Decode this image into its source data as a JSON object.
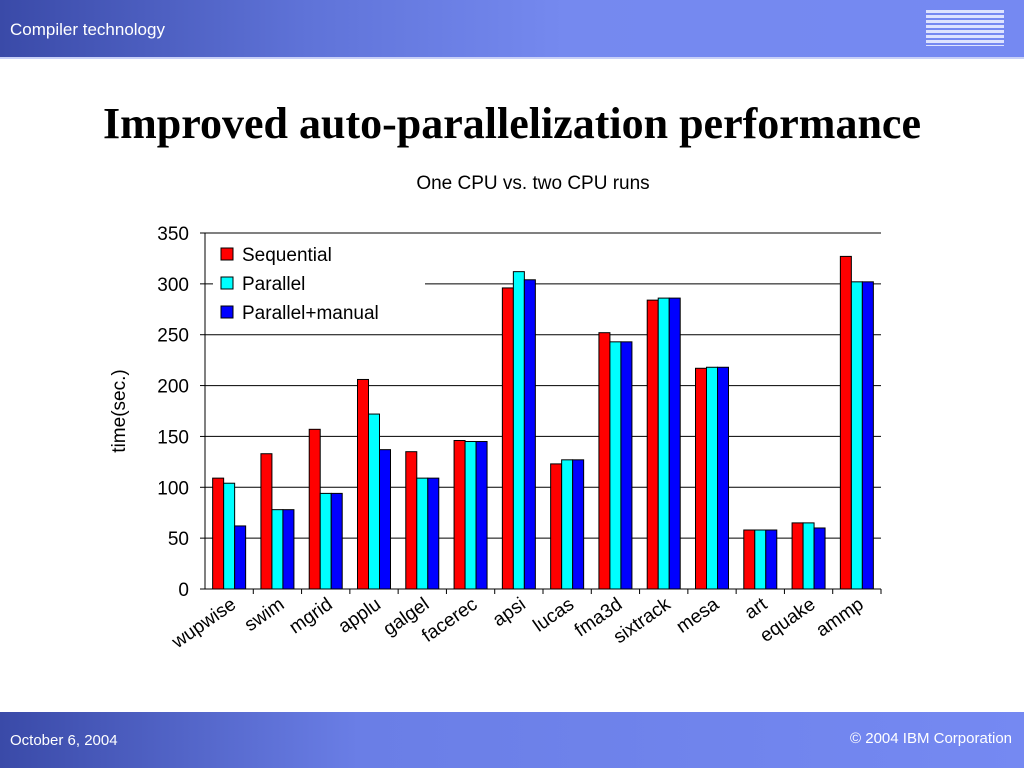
{
  "header": {
    "title": "Compiler technology",
    "logo": "IBM"
  },
  "page": {
    "title": "Improved auto-parallelization performance"
  },
  "footer": {
    "date": "October 6, 2004",
    "copyright": "© 2004 IBM Corporation"
  },
  "chart_data": {
    "type": "bar",
    "title": "One CPU vs. two CPU runs",
    "xlabel": "",
    "ylabel": "time(sec.)",
    "ylim": [
      0,
      350
    ],
    "yticks": [
      0,
      50,
      100,
      150,
      200,
      250,
      300,
      350
    ],
    "grid": true,
    "legend_position": "top-left",
    "categories": [
      "wupwise",
      "swim",
      "mgrid",
      "applu",
      "galgel",
      "facerec",
      "apsi",
      "lucas",
      "fma3d",
      "sixtrack",
      "mesa",
      "art",
      "equake",
      "ammp"
    ],
    "series": [
      {
        "name": "Sequential",
        "color": "#ff0000",
        "values": [
          109,
          133,
          157,
          206,
          135,
          146,
          296,
          123,
          252,
          284,
          217,
          58,
          65,
          327
        ]
      },
      {
        "name": "Parallel",
        "color": "#00ffff",
        "values": [
          104,
          78,
          94,
          172,
          109,
          145,
          312,
          127,
          243,
          286,
          218,
          58,
          65,
          302
        ]
      },
      {
        "name": "Parallel+manual",
        "color": "#0000ff",
        "values": [
          62,
          78,
          94,
          137,
          109,
          145,
          304,
          127,
          243,
          286,
          218,
          58,
          60,
          302
        ]
      }
    ]
  }
}
